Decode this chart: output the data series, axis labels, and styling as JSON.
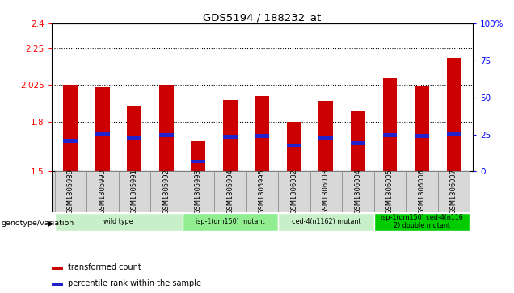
{
  "title": "GDS5194 / 188232_at",
  "samples": [
    "GSM1305989",
    "GSM1305990",
    "GSM1305991",
    "GSM1305992",
    "GSM1305993",
    "GSM1305994",
    "GSM1305995",
    "GSM1306002",
    "GSM1306003",
    "GSM1306004",
    "GSM1306005",
    "GSM1306006",
    "GSM1306007"
  ],
  "transformed_count": [
    2.025,
    2.01,
    1.9,
    2.025,
    1.685,
    1.935,
    1.96,
    1.8,
    1.93,
    1.87,
    2.065,
    2.02,
    2.19
  ],
  "percentile_rank_left": [
    1.685,
    1.73,
    1.7,
    1.72,
    1.56,
    1.71,
    1.715,
    1.66,
    1.705,
    1.67,
    1.72,
    1.715,
    1.73
  ],
  "ylim_left": [
    1.5,
    2.4
  ],
  "ylim_right": [
    0,
    100
  ],
  "yticks_left": [
    1.5,
    1.8,
    2.025,
    2.25,
    2.4
  ],
  "ytick_labels_left": [
    "1.5",
    "1.8",
    "2.025",
    "2.25",
    "2.4"
  ],
  "yticks_right": [
    0,
    25,
    50,
    75,
    100
  ],
  "ytick_labels_right": [
    "0",
    "25",
    "50",
    "75",
    "100%"
  ],
  "hlines": [
    1.8,
    2.025,
    2.25
  ],
  "groups": [
    {
      "label": "wild type",
      "start": 0,
      "end": 4,
      "color": "#c8f0c8"
    },
    {
      "label": "isp-1(qm150) mutant",
      "start": 4,
      "end": 7,
      "color": "#90ee90"
    },
    {
      "label": "ced-4(n1162) mutant",
      "start": 7,
      "end": 10,
      "color": "#c8f0c8"
    },
    {
      "label": "isp-1(qm150) ced-4(n116\n2) double mutant",
      "start": 10,
      "end": 13,
      "color": "#00cc00"
    }
  ],
  "bar_color": "#cc0000",
  "blue_marker_color": "#2222cc",
  "bar_width": 0.45,
  "legend_labels": [
    "transformed count",
    "percentile rank within the sample"
  ],
  "legend_colors": [
    "#cc0000",
    "#2222cc"
  ],
  "genotype_label": "genotype/variation",
  "bg_color": "#d8d8d8"
}
